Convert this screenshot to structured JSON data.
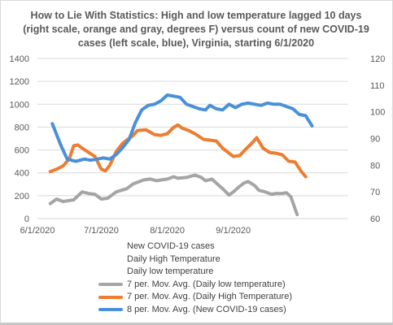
{
  "chart_data": {
    "type": "line",
    "title": "How to Lie With Statistics:  High and low temperature lagged 10 days (right scale, orange and gray, degrees F) versus count of new COVID-19 cases (left scale, blue), Virginia, starting 6/1/2020",
    "x_start": "2020-06-01",
    "x_end": "2020-10-25",
    "x_ticks": [
      {
        "date": "2020-06-01",
        "label": "6/1/2020"
      },
      {
        "date": "2020-07-01",
        "label": "7/1/2020"
      },
      {
        "date": "2020-08-01",
        "label": "8/1/2020"
      },
      {
        "date": "2020-09-01",
        "label": "9/1/2020"
      }
    ],
    "y_left": {
      "ticks": [
        0,
        200,
        400,
        600,
        800,
        1000,
        1200,
        1400
      ],
      "ylim": [
        0,
        1400
      ]
    },
    "y_right": {
      "ticks": [
        60,
        70,
        80,
        90,
        100,
        110,
        120
      ],
      "ylim": [
        60,
        120
      ]
    },
    "legend": [
      "New COVID-19 cases",
      "Daily High Temperature",
      "Daily low temperature",
      "7 per. Mov. Avg. (Daily low temperature)",
      "7 per. Mov. Avg. (Daily High Temperature)",
      "8 per. Mov. Avg. (New COVID-19 cases)"
    ],
    "series": [
      {
        "name": "7 per. Mov. Avg. (Daily low temperature)",
        "axis": "right",
        "color": "#a5a5a5",
        "points": [
          [
            "2020-06-07",
            65.6
          ],
          [
            "2020-06-10",
            67.3
          ],
          [
            "2020-06-13",
            66.4
          ],
          [
            "2020-06-18",
            67.0
          ],
          [
            "2020-06-22",
            70.0
          ],
          [
            "2020-06-25",
            69.4
          ],
          [
            "2020-06-28",
            69.1
          ],
          [
            "2020-07-01",
            67.3
          ],
          [
            "2020-07-04",
            67.6
          ],
          [
            "2020-07-08",
            70.0
          ],
          [
            "2020-07-13",
            71.2
          ],
          [
            "2020-07-16",
            73.0
          ],
          [
            "2020-07-19",
            73.9
          ],
          [
            "2020-07-21",
            74.5
          ],
          [
            "2020-07-24",
            74.8
          ],
          [
            "2020-07-27",
            74.2
          ],
          [
            "2020-08-01",
            74.8
          ],
          [
            "2020-08-04",
            75.7
          ],
          [
            "2020-08-06",
            75.1
          ],
          [
            "2020-08-10",
            75.4
          ],
          [
            "2020-08-14",
            76.3
          ],
          [
            "2020-08-17",
            75.4
          ],
          [
            "2020-08-19",
            74.2
          ],
          [
            "2020-08-22",
            74.8
          ],
          [
            "2020-08-24",
            73.3
          ],
          [
            "2020-08-27",
            71.2
          ],
          [
            "2020-08-30",
            68.8
          ],
          [
            "2020-09-01",
            70.0
          ],
          [
            "2020-09-04",
            72.1
          ],
          [
            "2020-09-06",
            73.3
          ],
          [
            "2020-09-08",
            73.9
          ],
          [
            "2020-09-11",
            72.4
          ],
          [
            "2020-09-13",
            70.6
          ],
          [
            "2020-09-16",
            70.0
          ],
          [
            "2020-09-19",
            69.1
          ],
          [
            "2020-09-21",
            69.4
          ],
          [
            "2020-09-24",
            69.4
          ],
          [
            "2020-09-26",
            69.7
          ],
          [
            "2020-09-28",
            68.2
          ],
          [
            "2020-10-01",
            61.5
          ]
        ]
      },
      {
        "name": "7 per. Mov. Avg. (Daily High Temperature)",
        "axis": "right",
        "color": "#ed7d31",
        "points": [
          [
            "2020-06-07",
            77.6
          ],
          [
            "2020-06-10",
            78.5
          ],
          [
            "2020-06-13",
            79.7
          ],
          [
            "2020-06-16",
            82.4
          ],
          [
            "2020-06-18",
            87.3
          ],
          [
            "2020-06-20",
            87.6
          ],
          [
            "2020-06-22",
            86.4
          ],
          [
            "2020-06-25",
            84.8
          ],
          [
            "2020-06-28",
            83.3
          ],
          [
            "2020-07-01",
            78.5
          ],
          [
            "2020-07-03",
            77.9
          ],
          [
            "2020-07-05",
            80.0
          ],
          [
            "2020-07-08",
            85.1
          ],
          [
            "2020-07-11",
            88.2
          ],
          [
            "2020-07-13",
            89.4
          ],
          [
            "2020-07-16",
            91.2
          ],
          [
            "2020-07-18",
            93.0
          ],
          [
            "2020-07-22",
            93.3
          ],
          [
            "2020-07-26",
            91.5
          ],
          [
            "2020-07-29",
            91.2
          ],
          [
            "2020-08-01",
            91.8
          ],
          [
            "2020-08-04",
            94.2
          ],
          [
            "2020-08-06",
            95.1
          ],
          [
            "2020-08-08",
            93.9
          ],
          [
            "2020-08-11",
            93.0
          ],
          [
            "2020-08-14",
            91.8
          ],
          [
            "2020-08-18",
            89.7
          ],
          [
            "2020-08-21",
            89.4
          ],
          [
            "2020-08-24",
            89.1
          ],
          [
            "2020-08-27",
            86.4
          ],
          [
            "2020-08-30",
            84.5
          ],
          [
            "2020-09-01",
            83.3
          ],
          [
            "2020-09-04",
            83.6
          ],
          [
            "2020-09-07",
            86.1
          ],
          [
            "2020-09-10",
            88.5
          ],
          [
            "2020-09-12",
            90.3
          ],
          [
            "2020-09-15",
            86.4
          ],
          [
            "2020-09-18",
            84.8
          ],
          [
            "2020-09-21",
            84.5
          ],
          [
            "2020-09-24",
            83.9
          ],
          [
            "2020-09-27",
            81.5
          ],
          [
            "2020-09-30",
            81.2
          ],
          [
            "2020-10-03",
            77.6
          ],
          [
            "2020-10-05",
            75.7
          ]
        ]
      },
      {
        "name": "8 per. Mov. Avg. (New COVID-19 cases)",
        "axis": "left",
        "color": "#4a90d9",
        "points": [
          [
            "2020-06-08",
            830
          ],
          [
            "2020-06-12",
            640
          ],
          [
            "2020-06-15",
            520
          ],
          [
            "2020-06-19",
            500
          ],
          [
            "2020-06-23",
            520
          ],
          [
            "2020-06-26",
            510
          ],
          [
            "2020-06-29",
            520
          ],
          [
            "2020-07-02",
            530
          ],
          [
            "2020-07-05",
            520
          ],
          [
            "2020-07-08",
            560
          ],
          [
            "2020-07-11",
            620
          ],
          [
            "2020-07-14",
            690
          ],
          [
            "2020-07-17",
            840
          ],
          [
            "2020-07-20",
            950
          ],
          [
            "2020-07-23",
            990
          ],
          [
            "2020-07-26",
            1000
          ],
          [
            "2020-07-29",
            1030
          ],
          [
            "2020-08-01",
            1080
          ],
          [
            "2020-08-04",
            1070
          ],
          [
            "2020-08-07",
            1060
          ],
          [
            "2020-08-10",
            1000
          ],
          [
            "2020-08-13",
            980
          ],
          [
            "2020-08-16",
            960
          ],
          [
            "2020-08-19",
            950
          ],
          [
            "2020-08-21",
            990
          ],
          [
            "2020-08-24",
            960
          ],
          [
            "2020-08-27",
            950
          ],
          [
            "2020-08-30",
            1000
          ],
          [
            "2020-09-02",
            970
          ],
          [
            "2020-09-05",
            1000
          ],
          [
            "2020-09-08",
            1010
          ],
          [
            "2020-09-11",
            1000
          ],
          [
            "2020-09-14",
            990
          ],
          [
            "2020-09-17",
            1010
          ],
          [
            "2020-09-20",
            1000
          ],
          [
            "2020-09-23",
            1000
          ],
          [
            "2020-09-26",
            980
          ],
          [
            "2020-09-29",
            960
          ],
          [
            "2020-10-02",
            910
          ],
          [
            "2020-10-05",
            900
          ],
          [
            "2020-10-08",
            810
          ]
        ]
      }
    ]
  }
}
